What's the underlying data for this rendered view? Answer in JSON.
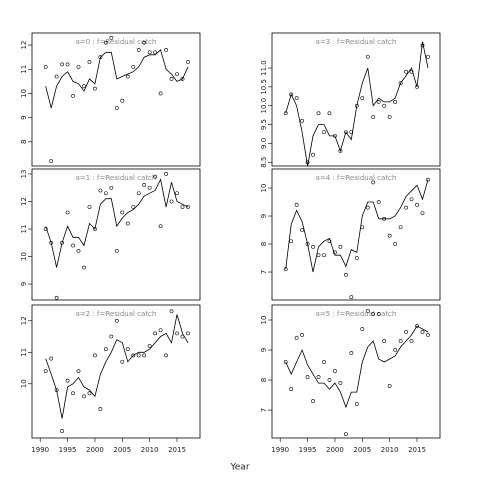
{
  "xlabel": "Year",
  "chart_data": [
    {
      "type": "line",
      "title": "a=0  :  f=Residual catch",
      "col": 0,
      "row": 0,
      "x": [
        1991,
        1992,
        1993,
        1994,
        1995,
        1996,
        1997,
        1998,
        1999,
        2000,
        2001,
        2002,
        2003,
        2004,
        2005,
        2006,
        2007,
        2008,
        2009,
        2010,
        2011,
        2012,
        2013,
        2014,
        2015,
        2016,
        2017
      ],
      "values": [
        11.1,
        7.2,
        10.7,
        11.2,
        11.2,
        9.9,
        11.1,
        10.3,
        11.3,
        10.2,
        11.5,
        12.1,
        12.3,
        9.4,
        9.7,
        10.7,
        11.1,
        11.8,
        12.1,
        11.7,
        11.7,
        10.0,
        11.8,
        10.6,
        10.8,
        10.6,
        11.3
      ],
      "fitted": [
        10.3,
        9.4,
        10.3,
        10.7,
        10.9,
        10.5,
        10.4,
        10.1,
        10.6,
        10.4,
        11.5,
        11.7,
        11.7,
        10.6,
        10.7,
        10.8,
        10.9,
        11.1,
        11.5,
        11.6,
        11.6,
        11.8,
        11.0,
        10.8,
        10.5,
        10.6,
        11.1
      ],
      "xlim": [
        1988.5,
        2019.2
      ],
      "ylim": [
        7.0,
        12.5
      ],
      "yticks": [
        8,
        9,
        10,
        11,
        12
      ]
    },
    {
      "type": "line",
      "title": "a=1  :  f=Residual catch",
      "col": 0,
      "row": 1,
      "x": [
        1991,
        1992,
        1993,
        1994,
        1995,
        1996,
        1997,
        1998,
        1999,
        2000,
        2001,
        2002,
        2003,
        2004,
        2005,
        2006,
        2007,
        2008,
        2009,
        2010,
        2011,
        2012,
        2013,
        2014,
        2015,
        2016,
        2017
      ],
      "values": [
        11.0,
        10.5,
        8.5,
        10.5,
        11.6,
        10.4,
        10.2,
        9.6,
        11.8,
        11.0,
        12.4,
        12.3,
        12.5,
        10.2,
        11.6,
        11.2,
        11.8,
        12.3,
        12.6,
        12.5,
        12.9,
        11.1,
        13.0,
        12.0,
        12.3,
        11.8,
        11.8
      ],
      "fitted": [
        11.1,
        10.5,
        9.6,
        10.5,
        11.1,
        10.7,
        10.7,
        10.4,
        11.2,
        11.0,
        11.9,
        12.1,
        12.1,
        11.1,
        11.4,
        11.6,
        11.7,
        11.9,
        12.2,
        12.3,
        12.4,
        12.8,
        11.8,
        12.7,
        12.0,
        11.9,
        11.8
      ],
      "xlim": [
        1988.5,
        2019.2
      ],
      "ylim": [
        8.42,
        13.18
      ],
      "yticks": [
        9,
        10,
        11,
        12,
        13
      ]
    },
    {
      "type": "line",
      "title": "a=2  :  f=Residual catch",
      "col": 0,
      "row": 2,
      "x": [
        1991,
        1992,
        1993,
        1994,
        1995,
        1996,
        1997,
        1998,
        1999,
        2000,
        2001,
        2002,
        2003,
        2004,
        2005,
        2006,
        2007,
        2008,
        2009,
        2010,
        2011,
        2012,
        2013,
        2014,
        2015,
        2016,
        2017
      ],
      "values": [
        10.4,
        10.8,
        9.8,
        8.5,
        10.1,
        9.7,
        10.4,
        9.6,
        9.7,
        10.9,
        9.2,
        11.1,
        11.5,
        12.0,
        10.7,
        11.1,
        10.9,
        10.9,
        10.9,
        11.2,
        11.6,
        11.7,
        10.9,
        12.3,
        11.6,
        11.5,
        11.6
      ],
      "fitted": [
        10.8,
        10.3,
        9.8,
        8.9,
        9.9,
        10.0,
        10.2,
        9.9,
        9.8,
        9.6,
        10.3,
        10.7,
        11.0,
        11.4,
        11.3,
        10.7,
        10.9,
        11.0,
        11.0,
        11.1,
        11.3,
        11.5,
        11.6,
        11.3,
        12.2,
        11.6,
        11.3
      ],
      "xlim": [
        1988.5,
        2019.2
      ],
      "ylim": [
        8.28,
        12.5
      ],
      "yticks": [
        10,
        11,
        12
      ],
      "xticks": [
        1990,
        1995,
        2000,
        2005,
        2010,
        2015
      ]
    },
    {
      "type": "line",
      "title": "a=3  :  f=Residual catch",
      "col": 1,
      "row": 0,
      "x": [
        1991,
        1992,
        1993,
        1994,
        1995,
        1996,
        1997,
        1998,
        1999,
        2000,
        2001,
        2002,
        2003,
        2004,
        2005,
        2006,
        2007,
        2008,
        2009,
        2010,
        2011,
        2012,
        2013,
        2014,
        2015,
        2016,
        2017
      ],
      "values": [
        9.8,
        10.3,
        10.2,
        9.6,
        8.5,
        8.7,
        9.8,
        9.3,
        9.8,
        9.2,
        8.8,
        9.3,
        9.3,
        10.0,
        10.2,
        11.3,
        9.7,
        10.1,
        10.0,
        9.7,
        10.1,
        10.6,
        10.9,
        10.9,
        10.5,
        11.6,
        11.3
      ],
      "fitted": [
        9.8,
        10.3,
        10.0,
        9.3,
        8.4,
        9.2,
        9.5,
        9.5,
        9.2,
        9.2,
        8.8,
        9.3,
        9.1,
        10.0,
        10.6,
        11.0,
        10.0,
        10.2,
        10.1,
        10.1,
        10.2,
        10.6,
        10.8,
        11.0,
        10.5,
        11.7,
        11.0
      ],
      "xlim": [
        1988.5,
        2019.2
      ],
      "ylim": [
        8.4,
        11.93
      ],
      "yticks": [
        8.5,
        {
          "value": 9,
          "label": "9.0"
        },
        9.5,
        {
          "value": 10,
          "label": "10.0"
        },
        10.5,
        {
          "value": 11,
          "label": "11.0"
        }
      ]
    },
    {
      "type": "line",
      "title": "a=4  :  f=Residual catch",
      "col": 1,
      "row": 1,
      "x": [
        1991,
        1992,
        1993,
        1994,
        1995,
        1996,
        1997,
        1998,
        1999,
        2000,
        2001,
        2002,
        2003,
        2004,
        2005,
        2006,
        2007,
        2008,
        2009,
        2010,
        2011,
        2012,
        2013,
        2014,
        2015,
        2016,
        2017
      ],
      "values": [
        7.1,
        8.1,
        9.4,
        8.5,
        8.0,
        7.9,
        7.6,
        7.6,
        8.1,
        7.7,
        7.9,
        6.9,
        6.1,
        7.5,
        8.6,
        9.3,
        10.2,
        9.5,
        8.9,
        8.3,
        8.0,
        8.6,
        9.3,
        9.6,
        9.4,
        9.1,
        10.3
      ],
      "fitted": [
        7.1,
        8.7,
        9.2,
        8.8,
        8.0,
        7.0,
        7.9,
        8.1,
        8.2,
        7.6,
        7.6,
        7.2,
        7.8,
        7.7,
        9.0,
        9.5,
        9.5,
        8.9,
        8.9,
        8.9,
        9.0,
        9.3,
        9.7,
        9.9,
        10.1,
        9.6,
        10.3
      ],
      "xlim": [
        1988.5,
        2019.2
      ],
      "ylim": [
        6.0,
        10.68
      ],
      "yticks": [
        7,
        8,
        9,
        10
      ]
    },
    {
      "type": "line",
      "title": "a=5  :  f=Residual catch",
      "col": 1,
      "row": 2,
      "x": [
        1991,
        1992,
        1993,
        1994,
        1995,
        1996,
        1997,
        1998,
        1999,
        2000,
        2001,
        2002,
        2003,
        2004,
        2005,
        2006,
        2007,
        2008,
        2009,
        2010,
        2011,
        2012,
        2013,
        2014,
        2015,
        2016,
        2017
      ],
      "values": [
        8.6,
        7.7,
        9.4,
        9.5,
        8.1,
        7.3,
        8.1,
        8.6,
        8.0,
        8.3,
        7.9,
        6.2,
        8.9,
        7.2,
        9.7,
        10.3,
        10.2,
        10.2,
        9.3,
        7.8,
        9.0,
        9.3,
        9.6,
        9.3,
        9.8,
        9.6,
        9.5
      ],
      "fitted": [
        8.6,
        8.2,
        8.6,
        9.0,
        8.5,
        8.2,
        7.9,
        7.9,
        7.7,
        7.9,
        7.6,
        7.1,
        7.6,
        7.6,
        8.6,
        9.1,
        9.3,
        8.7,
        8.6,
        8.7,
        8.8,
        9.1,
        9.3,
        9.5,
        9.8,
        9.7,
        9.6
      ],
      "xlim": [
        1988.5,
        2019.2
      ],
      "ylim": [
        6.07,
        10.5
      ],
      "yticks": [
        7,
        8,
        9,
        10
      ],
      "xticks": [
        1990,
        1995,
        2000,
        2005,
        2010,
        2015
      ]
    }
  ]
}
